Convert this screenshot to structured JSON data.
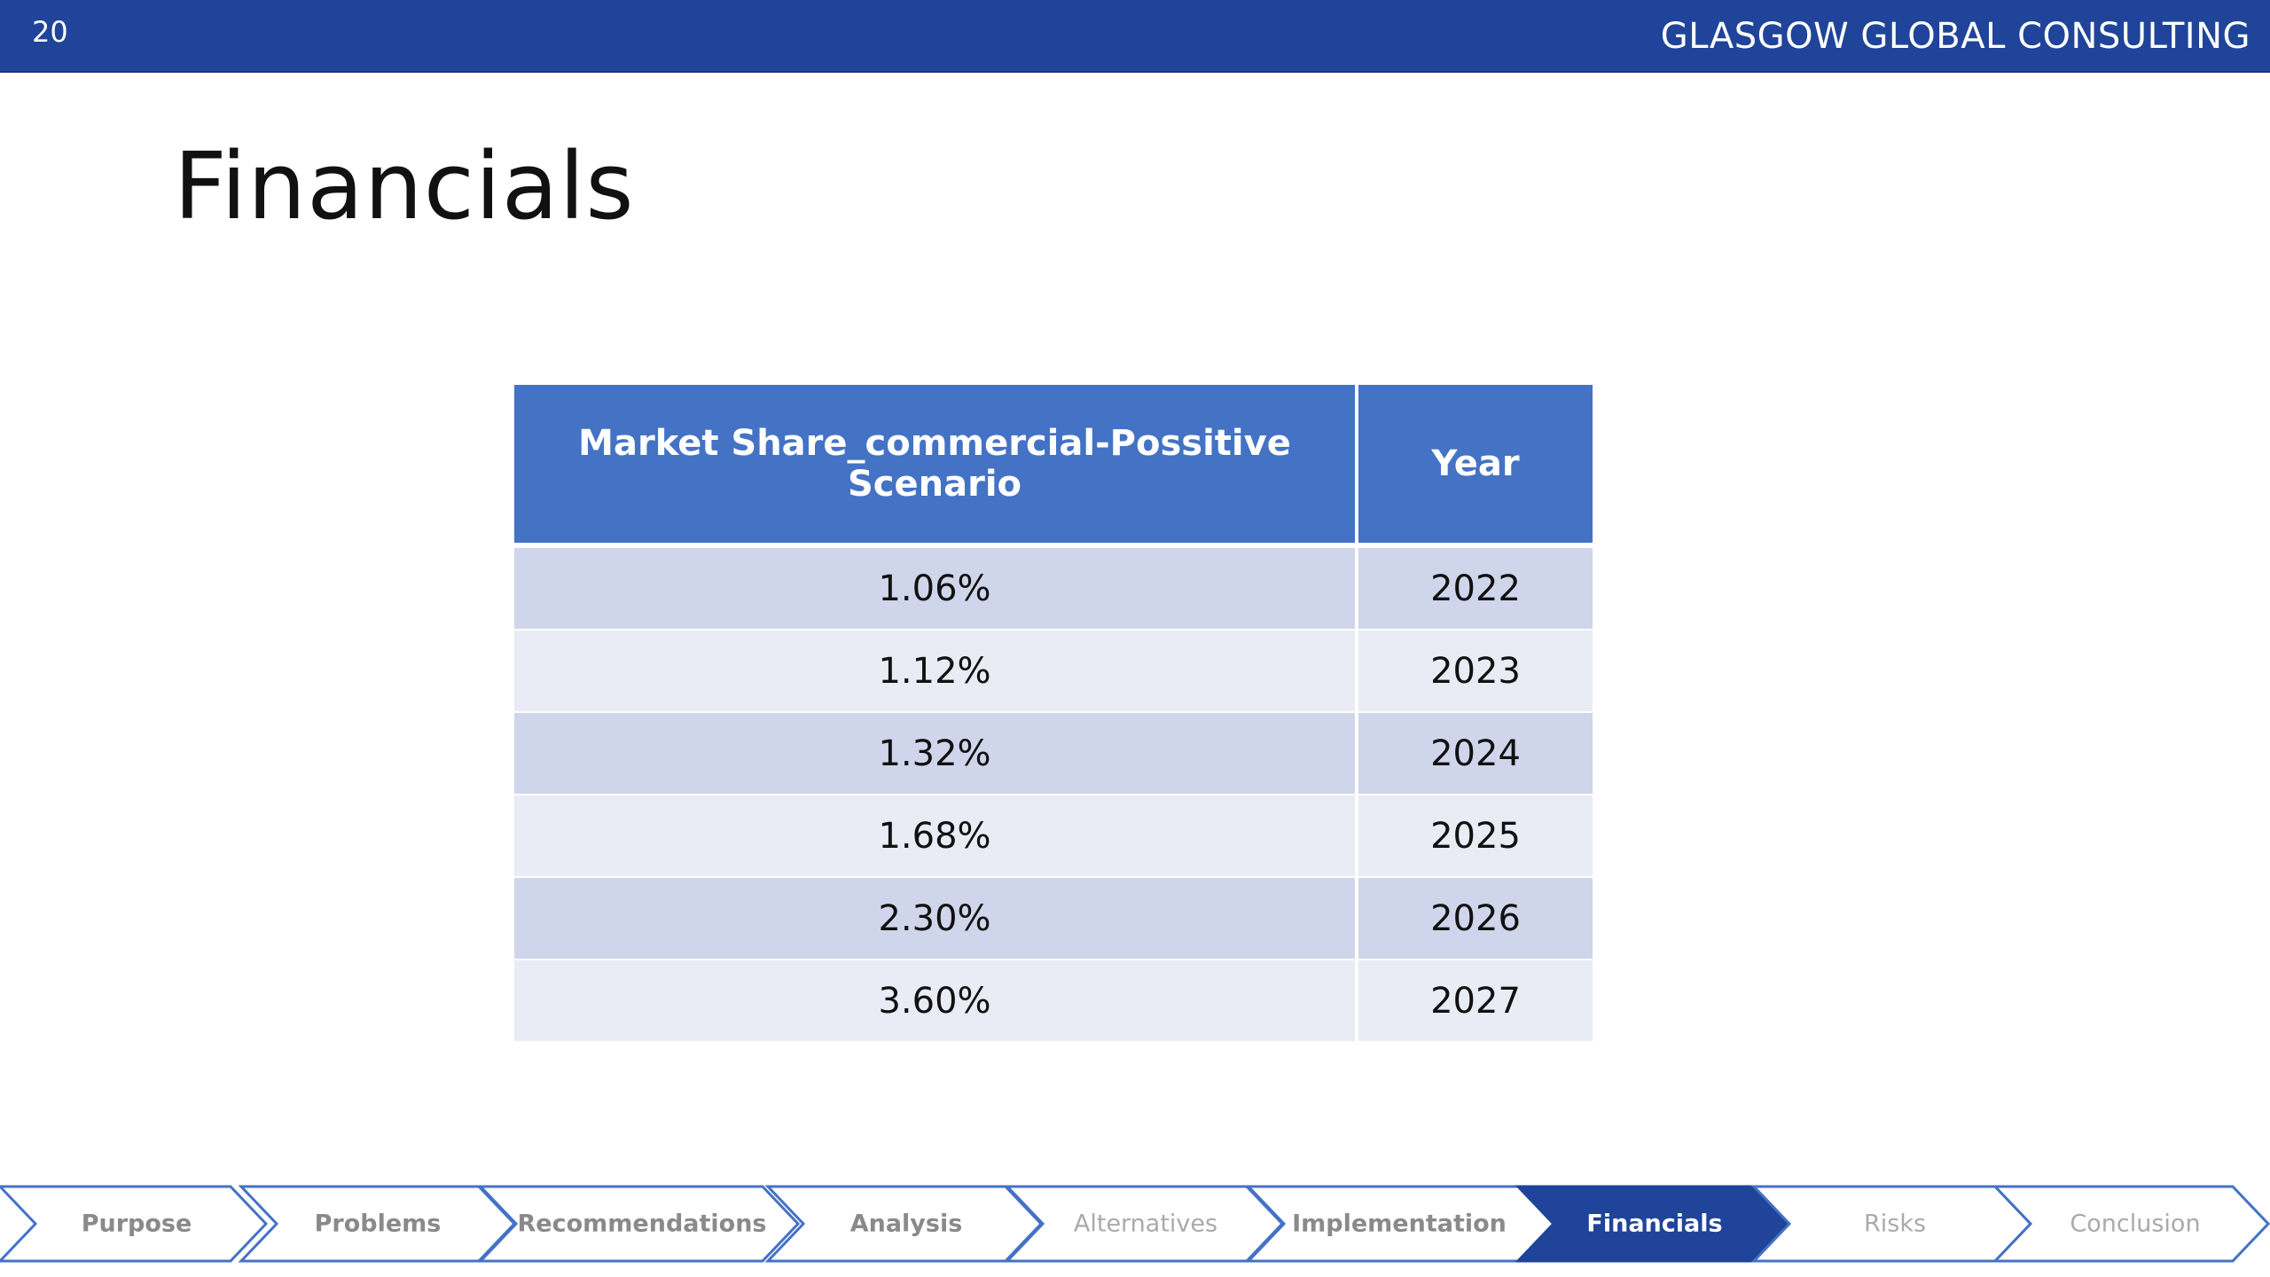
{
  "header": {
    "page_number": "20",
    "brand": "GLASGOW GLOBAL CONSULTING"
  },
  "title": "Financials",
  "table": {
    "headers": [
      "Market Share_commercial-Possitive Scenario",
      "Year"
    ],
    "rows": [
      {
        "share": "1.06%",
        "year": "2022"
      },
      {
        "share": "1.12%",
        "year": "2023"
      },
      {
        "share": "1.32%",
        "year": "2024"
      },
      {
        "share": "1.68%",
        "year": "2025"
      },
      {
        "share": "2.30%",
        "year": "2026"
      },
      {
        "share": "3.60%",
        "year": "2027"
      }
    ]
  },
  "nav": {
    "active": "Financials",
    "steps": [
      "Purpose",
      "Problems",
      "Recommendations",
      "Analysis",
      "Alternatives",
      "Implementation",
      "Financials",
      "Risks",
      "Conclusion"
    ],
    "colors": {
      "active_fill": "#1f4499",
      "outline": "#4472c4",
      "text": "#8a8a8a",
      "faded_text": "#aaaaaa"
    }
  },
  "colors": {
    "header_bar": "#1f4499",
    "table_header": "#4472c4",
    "row_odd": "#cfd5ea",
    "row_even": "#e9ebf5"
  }
}
